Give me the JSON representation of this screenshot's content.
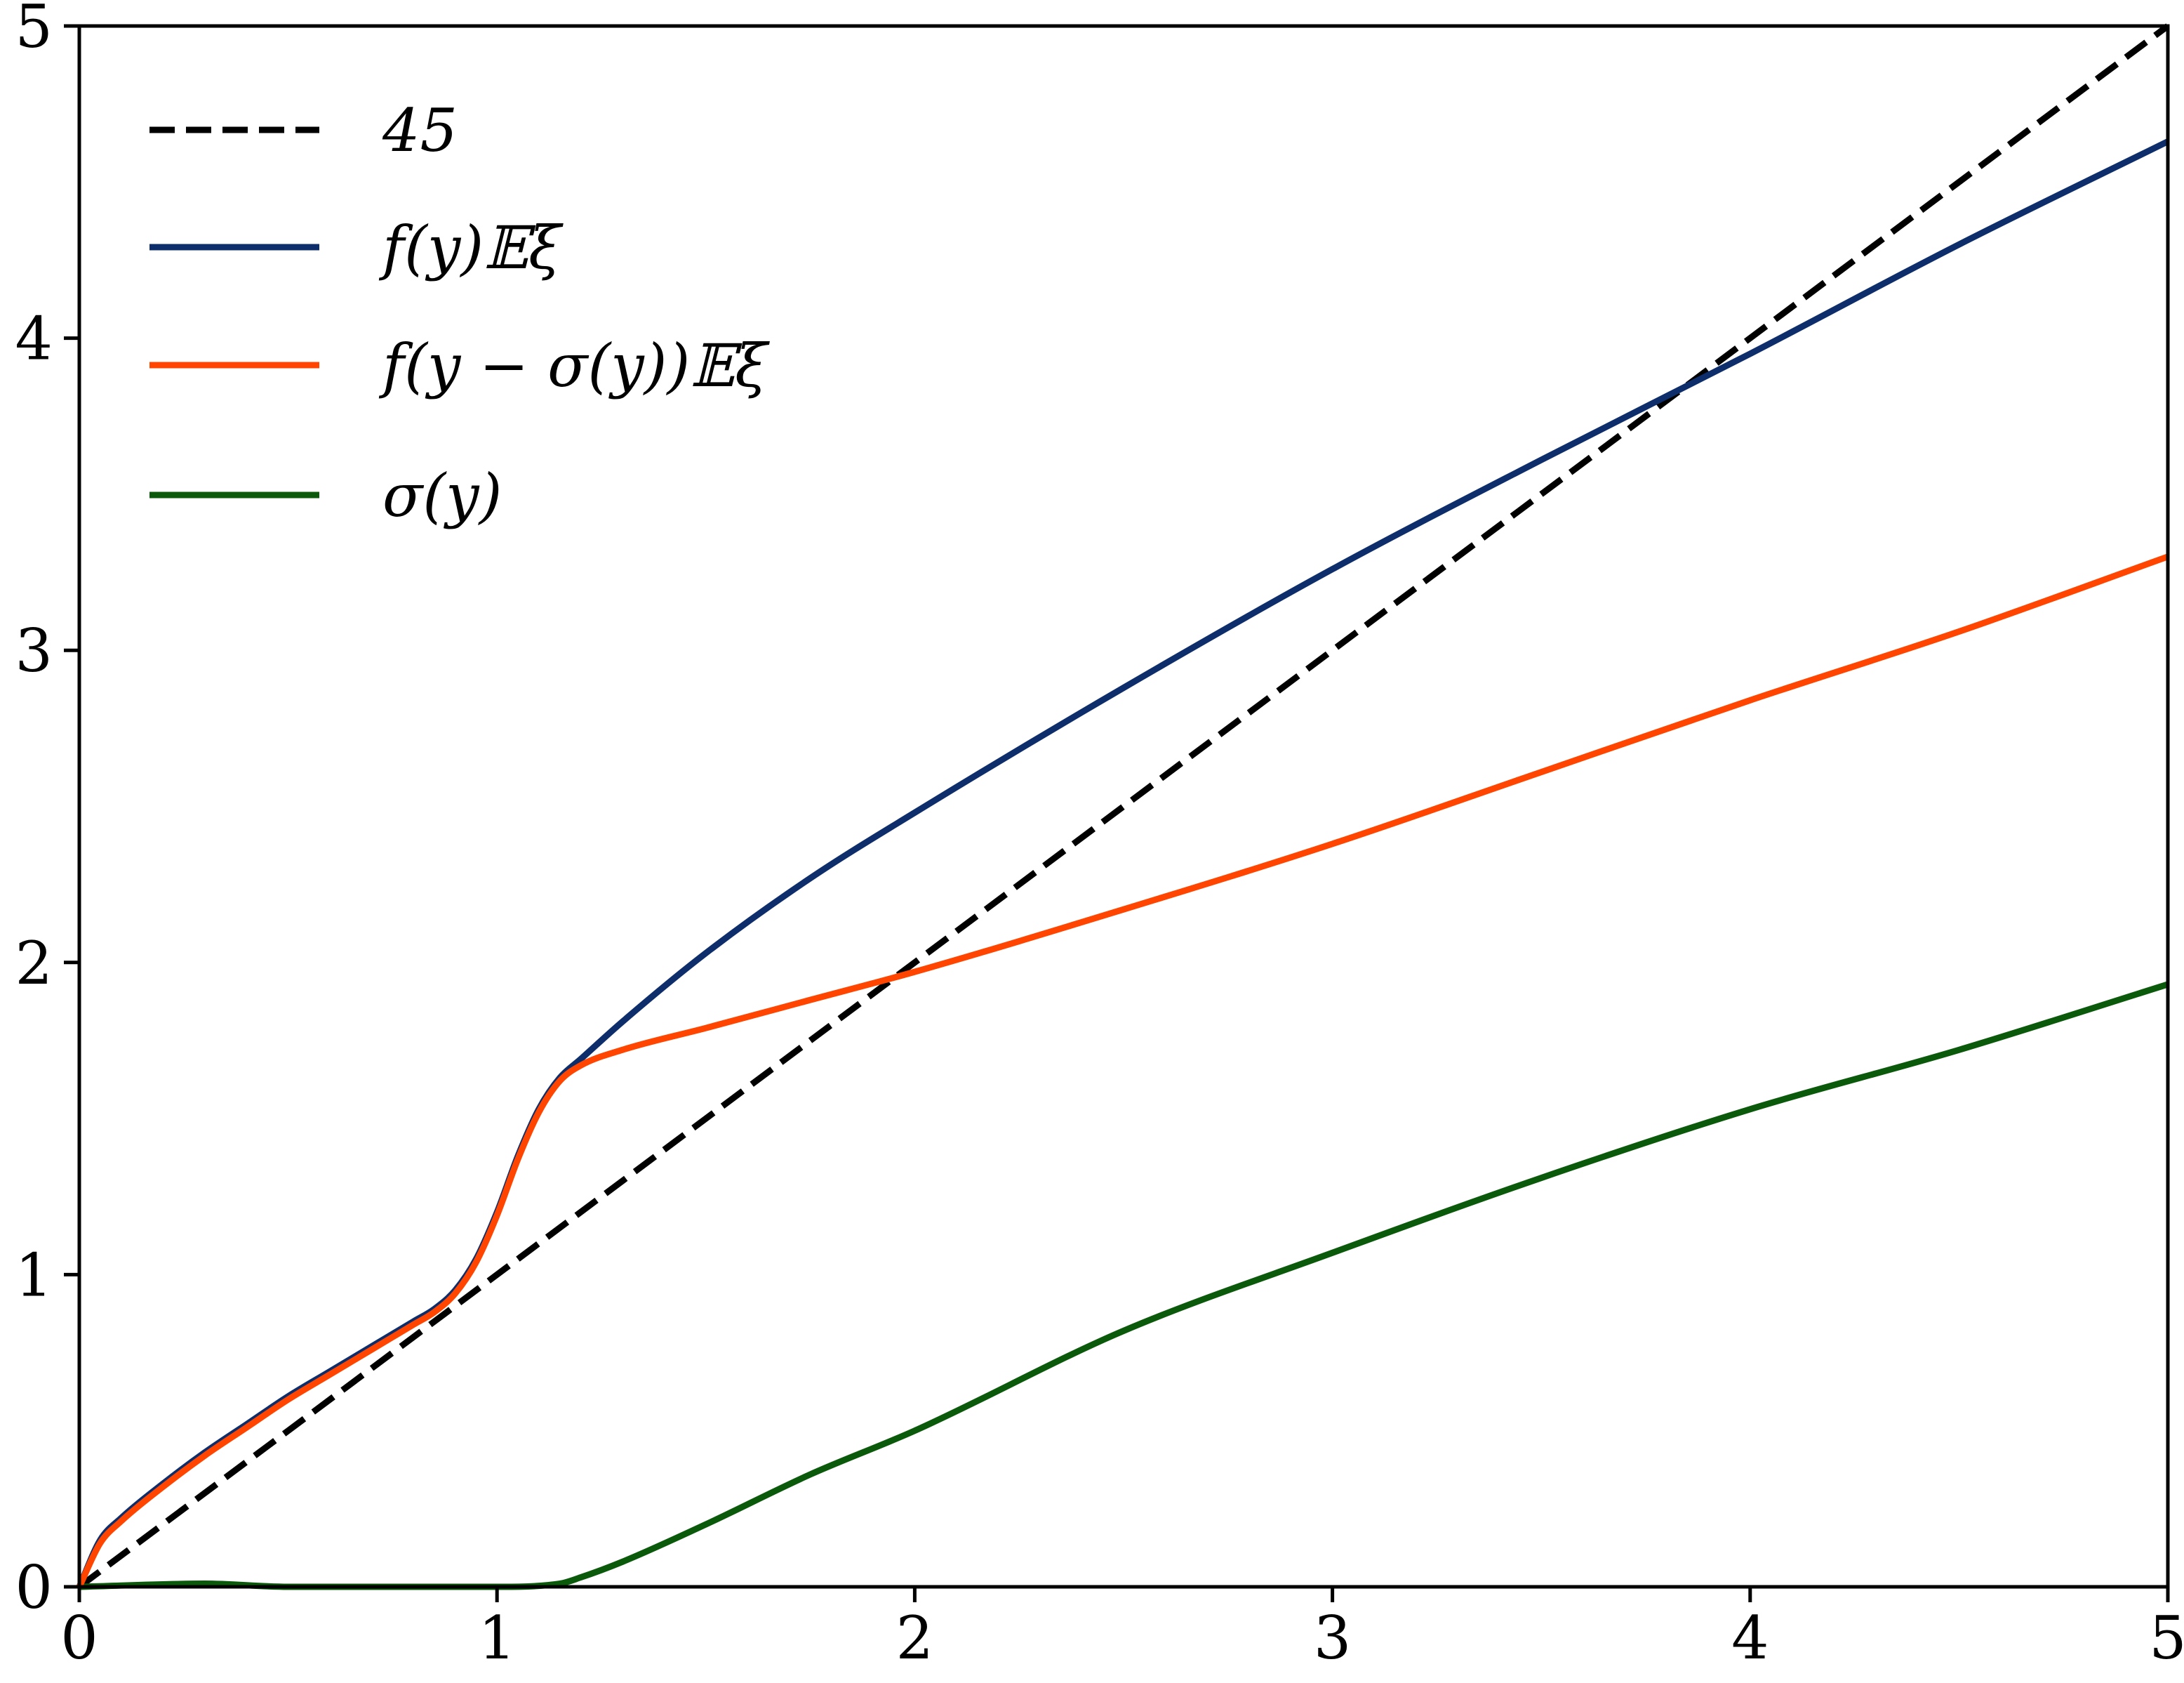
{
  "chart_data": {
    "type": "line",
    "title": "",
    "xlabel": "",
    "ylabel": "",
    "xlim": [
      0,
      5
    ],
    "ylim": [
      0,
      5
    ],
    "xticks": [
      0,
      1,
      2,
      3,
      4,
      5
    ],
    "yticks": [
      0,
      1,
      2,
      3,
      4,
      5
    ],
    "grid": false,
    "legend_position": "top-left",
    "series": [
      {
        "name": "45",
        "color": "#000000",
        "dash": "dashed",
        "x": [
          0,
          5
        ],
        "y": [
          0,
          5
        ]
      },
      {
        "name": "f(y)𝔼ξ",
        "color": "#0d2e6b",
        "dash": "solid",
        "x": [
          0,
          0.05,
          0.1,
          0.2,
          0.3,
          0.4,
          0.5,
          0.6,
          0.7,
          0.8,
          0.85,
          0.9,
          0.95,
          1.0,
          1.05,
          1.1,
          1.15,
          1.2,
          1.3,
          1.5,
          1.75,
          2.0,
          2.5,
          3.0,
          3.5,
          4.0,
          4.5,
          5.0
        ],
        "y": [
          0,
          0.15,
          0.22,
          0.33,
          0.43,
          0.52,
          0.61,
          0.69,
          0.77,
          0.85,
          0.89,
          0.95,
          1.05,
          1.2,
          1.38,
          1.53,
          1.63,
          1.69,
          1.81,
          2.03,
          2.27,
          2.48,
          2.88,
          3.26,
          3.61,
          3.95,
          4.3,
          4.63
        ]
      },
      {
        "name": "f(y − σ(y))𝔼ξ",
        "color": "#ff4500",
        "dash": "solid",
        "x": [
          0,
          0.05,
          0.1,
          0.2,
          0.3,
          0.4,
          0.5,
          0.6,
          0.7,
          0.8,
          0.85,
          0.9,
          0.95,
          1.0,
          1.05,
          1.1,
          1.15,
          1.2,
          1.3,
          1.5,
          1.75,
          2.0,
          2.5,
          3.0,
          3.5,
          4.0,
          4.5,
          5.0
        ],
        "y": [
          0,
          0.14,
          0.21,
          0.32,
          0.42,
          0.51,
          0.6,
          0.68,
          0.76,
          0.84,
          0.88,
          0.94,
          1.04,
          1.19,
          1.37,
          1.52,
          1.62,
          1.67,
          1.72,
          1.79,
          1.88,
          1.97,
          2.17,
          2.38,
          2.61,
          2.84,
          3.06,
          3.3
        ]
      },
      {
        "name": "σ(y)",
        "color": "#0b5a0b",
        "dash": "solid",
        "x": [
          0,
          0.3,
          0.5,
          1.0,
          1.15,
          1.2,
          1.3,
          1.5,
          1.75,
          2.0,
          2.5,
          3.0,
          3.5,
          4.0,
          4.5,
          5.0
        ],
        "y": [
          0,
          0.01,
          0.0,
          0.0,
          0.01,
          0.03,
          0.08,
          0.2,
          0.36,
          0.5,
          0.82,
          1.07,
          1.31,
          1.53,
          1.72,
          1.93
        ]
      }
    ]
  }
}
